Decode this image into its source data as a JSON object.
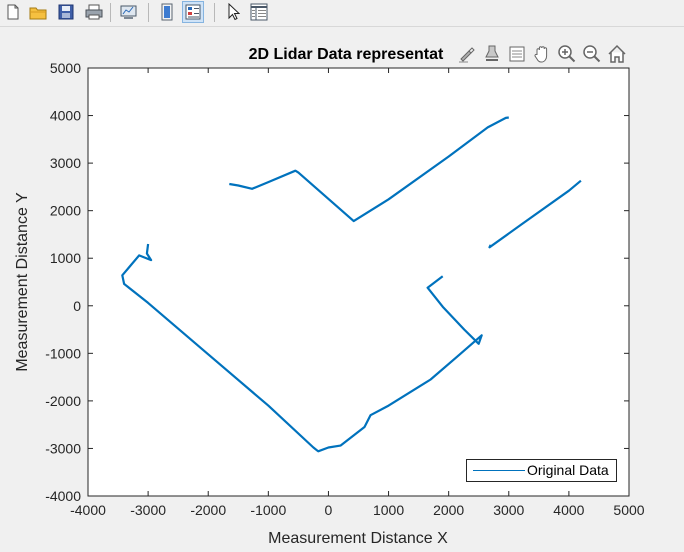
{
  "toolbar": {
    "buttons": [
      {
        "name": "new-figure",
        "icon": "new-file-icon"
      },
      {
        "name": "open-file",
        "icon": "folder-icon"
      },
      {
        "name": "save-figure",
        "icon": "save-disk-icon"
      },
      {
        "name": "print-figure",
        "icon": "printer-icon"
      },
      {
        "name": "link-plot",
        "icon": "link-plot-icon"
      },
      {
        "name": "hide-plot-tools",
        "icon": "hide-tools-icon"
      },
      {
        "name": "show-plot-tools",
        "icon": "show-tools-icon"
      },
      {
        "name": "edit-plot",
        "icon": "pointer-arrow-icon"
      },
      {
        "name": "open-property-inspector",
        "icon": "property-inspector-icon"
      }
    ]
  },
  "axes_toolbar": {
    "buttons": [
      {
        "name": "brush",
        "icon": "brush-icon"
      },
      {
        "name": "data-tips",
        "icon": "data-tips-icon"
      },
      {
        "name": "insert-legend",
        "icon": "legend-icon"
      },
      {
        "name": "pan",
        "icon": "hand-pan-icon"
      },
      {
        "name": "zoom-in",
        "icon": "zoom-in-icon"
      },
      {
        "name": "zoom-out",
        "icon": "zoom-out-icon"
      },
      {
        "name": "restore-view",
        "icon": "home-icon"
      }
    ]
  },
  "chart_data": {
    "type": "line",
    "title": "2D Lidar Data representat",
    "xlabel": "Measurement Distance X",
    "ylabel": "Measurement Distance Y",
    "xlim": [
      -4000,
      5000
    ],
    "ylim": [
      -4000,
      5000
    ],
    "xticks": [
      -4000,
      -3000,
      -2000,
      -1000,
      0,
      1000,
      2000,
      3000,
      4000,
      5000
    ],
    "yticks": [
      -4000,
      -3000,
      -2000,
      -1000,
      0,
      1000,
      2000,
      3000,
      4000,
      5000
    ],
    "grid": false,
    "legend": {
      "position": "bottom-right",
      "entries": [
        "Original Data"
      ]
    },
    "series": [
      {
        "name": "Original Data",
        "color": "#0072bd",
        "segments": [
          [
            [
              -1650,
              2560
            ],
            [
              -1500,
              2530
            ],
            [
              -1270,
              2460
            ],
            [
              -1000,
              2600
            ],
            [
              -550,
              2840
            ],
            [
              -500,
              2800
            ],
            [
              420,
              1780
            ],
            [
              1000,
              2240
            ],
            [
              2000,
              3140
            ],
            [
              2650,
              3750
            ],
            [
              2950,
              3950
            ],
            [
              3000,
              3960
            ]
          ],
          [
            [
              -3000,
              1300
            ],
            [
              -3020,
              1100
            ],
            [
              -2950,
              960
            ],
            [
              -3150,
              1060
            ],
            [
              -3430,
              640
            ],
            [
              -3400,
              460
            ],
            [
              -3000,
              60
            ],
            [
              -2000,
              -1020
            ],
            [
              -1000,
              -2100
            ],
            [
              -250,
              -2980
            ],
            [
              -170,
              -3060
            ],
            [
              0,
              -2980
            ],
            [
              200,
              -2940
            ],
            [
              600,
              -2550
            ],
            [
              700,
              -2300
            ],
            [
              1000,
              -2100
            ],
            [
              1700,
              -1550
            ],
            [
              2150,
              -1060
            ],
            [
              2550,
              -620
            ],
            [
              2500,
              -800
            ],
            [
              2260,
              -500
            ],
            [
              1900,
              -20
            ],
            [
              1650,
              380
            ],
            [
              1900,
              620
            ]
          ],
          [
            [
              2700,
              1280
            ],
            [
              2680,
              1230
            ],
            [
              3200,
              1700
            ],
            [
              4000,
              2420
            ],
            [
              4200,
              2630
            ]
          ]
        ]
      }
    ]
  }
}
